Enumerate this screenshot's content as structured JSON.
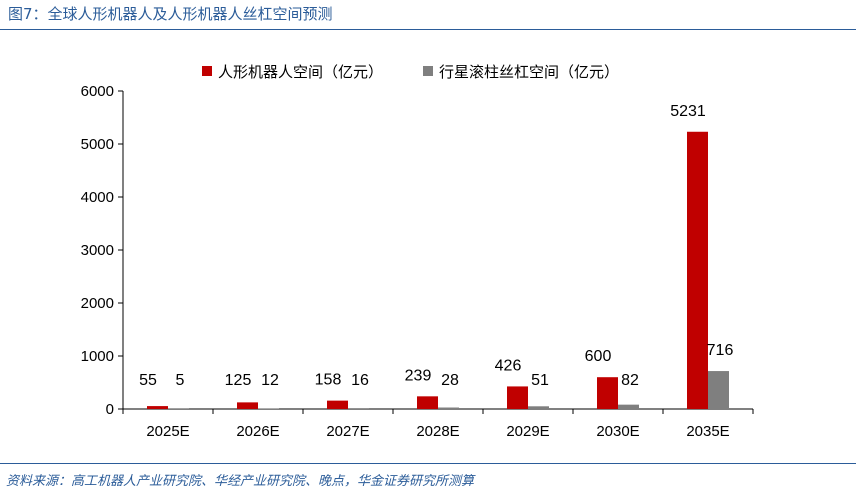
{
  "figure": {
    "title": "图7：全球人形机器人及人形机器人丝杠空间预测",
    "source": "资料来源：高工机器人产业研究院、华经产业研究院、晚点，华金证券研究所测算"
  },
  "chart_data": {
    "type": "bar",
    "categories": [
      "2025E",
      "2026E",
      "2027E",
      "2028E",
      "2029E",
      "2030E",
      "2035E"
    ],
    "series": [
      {
        "name": "人形机器人空间（亿元）",
        "values": [
          55,
          125,
          158,
          239,
          426,
          600,
          5231
        ],
        "color": "#C00000",
        "labels": [
          "55",
          "125",
          "158",
          "239",
          "426",
          "600",
          "5231"
        ]
      },
      {
        "name": "行星滚柱丝杠空间（亿元）",
        "values": [
          5,
          12,
          16,
          28,
          51,
          82,
          716
        ],
        "color": "#7F7F7F",
        "labels": [
          "5",
          "12",
          "16",
          "28",
          "51",
          "82",
          "716"
        ]
      }
    ],
    "ylim": [
      0,
      6000
    ],
    "yticks": [
      "0",
      "1000",
      "2000",
      "3000",
      "4000",
      "5000",
      "6000"
    ],
    "legend": "top",
    "grid": false
  }
}
